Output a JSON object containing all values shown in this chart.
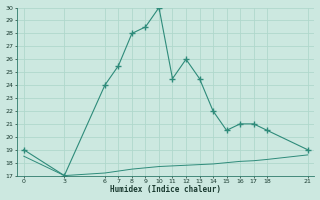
{
  "xlabel": "Humidex (Indice chaleur)",
  "x_upper": [
    0,
    3,
    6,
    7,
    8,
    9,
    10,
    11,
    12,
    13,
    14,
    15,
    16,
    17,
    18,
    21
  ],
  "y_upper": [
    19,
    17,
    24,
    25.5,
    28,
    28.5,
    30,
    24.5,
    26,
    24.5,
    22,
    20.5,
    21,
    21,
    20.5,
    19
  ],
  "x_lower": [
    0,
    3,
    6,
    7,
    8,
    9,
    10,
    11,
    12,
    13,
    14,
    15,
    16,
    17,
    18,
    21
  ],
  "y_lower": [
    18.5,
    17,
    17.2,
    17.35,
    17.5,
    17.6,
    17.7,
    17.75,
    17.8,
    17.85,
    17.9,
    18.0,
    18.1,
    18.15,
    18.25,
    18.6
  ],
  "line_color": "#2e8b7a",
  "bg_color": "#cce8e0",
  "grid_color": "#b0d8cc",
  "ylim": [
    17,
    30
  ],
  "xlim": [
    -0.5,
    21.5
  ],
  "yticks": [
    17,
    18,
    19,
    20,
    21,
    22,
    23,
    24,
    25,
    26,
    27,
    28,
    29,
    30
  ],
  "xticks": [
    0,
    3,
    6,
    7,
    8,
    9,
    10,
    11,
    12,
    13,
    14,
    15,
    16,
    17,
    18,
    21
  ]
}
